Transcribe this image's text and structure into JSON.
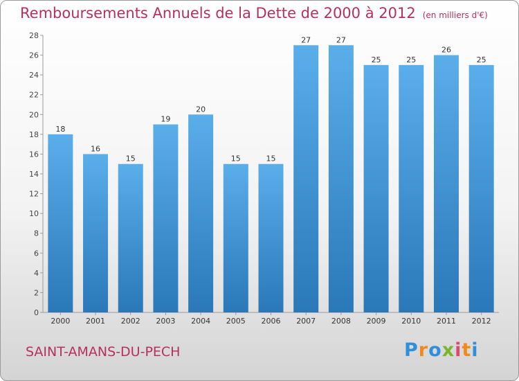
{
  "title": "Remboursements Annuels de la Dette de 2000 à 2012",
  "unit": "(en milliers d'€)",
  "city": "SAINT-AMANS-DU-PECH",
  "logo": {
    "text": "Proxiti",
    "letters": [
      "P",
      "r",
      "o",
      "x",
      "i",
      "t",
      "i"
    ],
    "colors": [
      "#2f8fd8",
      "#f08a1c",
      "#2f8fd8",
      "#7ab52e",
      "#d94a6f",
      "#f08a1c",
      "#2f8fd8"
    ]
  },
  "colors": {
    "bar_top": "#5aaeea",
    "bar_bottom": "#2a78b8",
    "title": "#b5305e"
  },
  "chart_data": {
    "type": "bar",
    "categories": [
      "2000",
      "2001",
      "2002",
      "2003",
      "2004",
      "2005",
      "2006",
      "2007",
      "2008",
      "2009",
      "2010",
      "2011",
      "2012"
    ],
    "values": [
      18,
      16,
      15,
      19,
      20,
      15,
      15,
      27,
      27,
      25,
      25,
      26,
      25
    ],
    "ylim": [
      0,
      28
    ],
    "yticks": [
      0,
      2,
      4,
      6,
      8,
      10,
      12,
      14,
      16,
      18,
      20,
      22,
      24,
      26,
      28
    ],
    "grid": false,
    "data_labels": true
  }
}
